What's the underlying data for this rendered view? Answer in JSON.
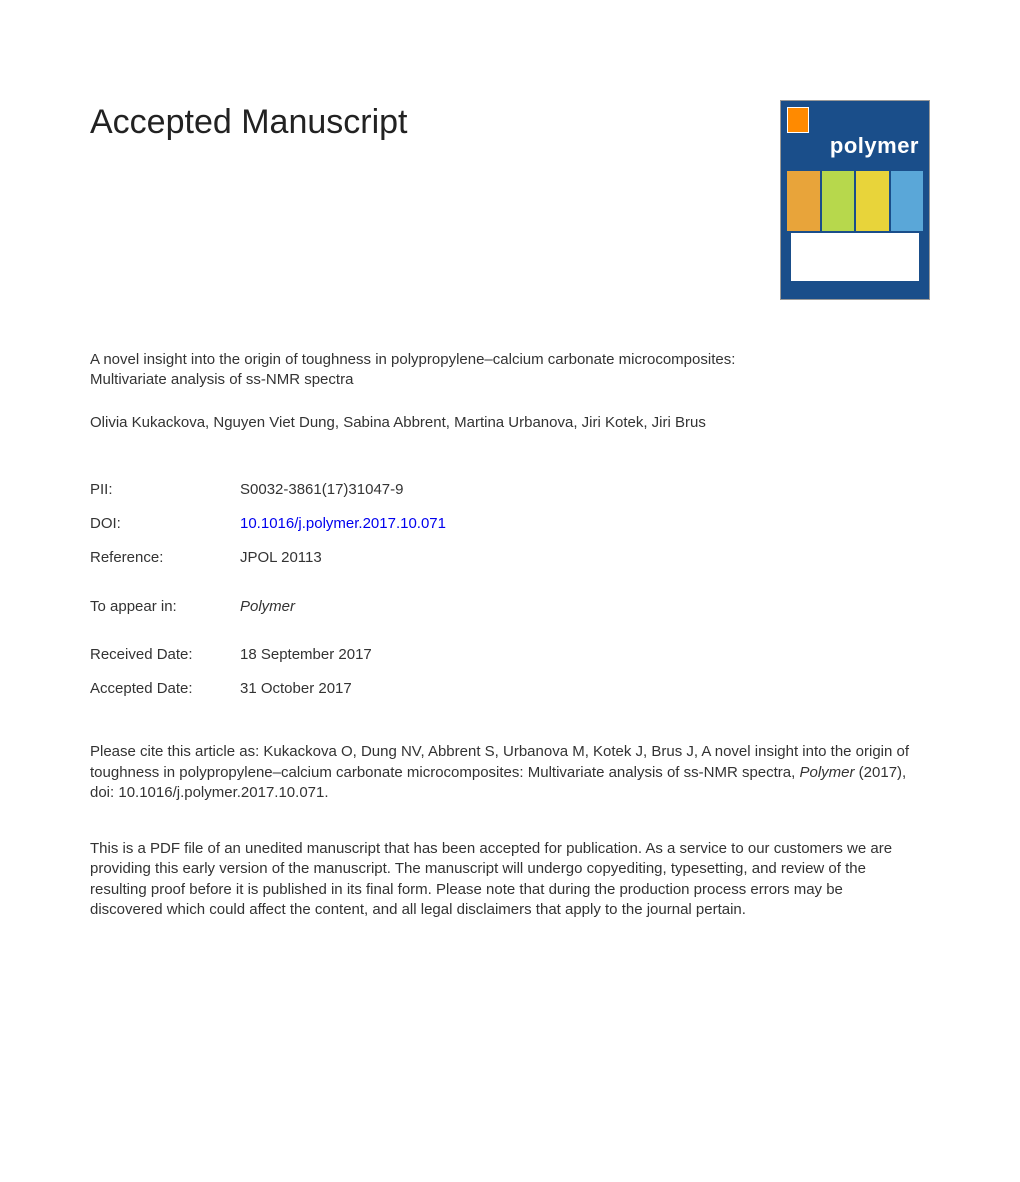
{
  "heading": "Accepted Manuscript",
  "journal_cover": {
    "name": "polymer",
    "background_color": "#1a4e8a",
    "logo_color": "#ff8a00"
  },
  "article_title": "A novel insight into the origin of toughness in polypropylene–calcium carbonate microcomposites: Multivariate analysis of ss-NMR spectra",
  "authors": "Olivia Kukackova, Nguyen Viet Dung, Sabina Abbrent, Martina Urbanova, Jiri Kotek, Jiri Brus",
  "meta": {
    "pii_label": "PII:",
    "pii_value": "S0032-3861(17)31047-9",
    "doi_label": "DOI:",
    "doi_value": "10.1016/j.polymer.2017.10.071",
    "reference_label": "Reference:",
    "reference_value": "JPOL 20113",
    "appear_label": "To appear in:",
    "appear_value": "Polymer",
    "received_label": "Received Date:",
    "received_value": "18 September 2017",
    "accepted_label": "Accepted Date:",
    "accepted_value": "31 October 2017"
  },
  "citation_prefix": "Please cite this article as: Kukackova O, Dung NV, Abbrent S, Urbanova M, Kotek J, Brus J, A novel insight into the origin of toughness in polypropylene–calcium carbonate microcomposites: Multivariate analysis of ss-NMR spectra, ",
  "citation_journal": "Polymer",
  "citation_suffix": " (2017), doi: 10.1016/j.polymer.2017.10.071.",
  "disclaimer": "This is a PDF file of an unedited manuscript that has been accepted for publication. As a service to our customers we are providing this early version of the manuscript. The manuscript will undergo copyediting, typesetting, and review of the resulting proof before it is published in its final form. Please note that during the production process errors may be discovered which could affect the content, and all legal disclaimers that apply to the journal pertain."
}
